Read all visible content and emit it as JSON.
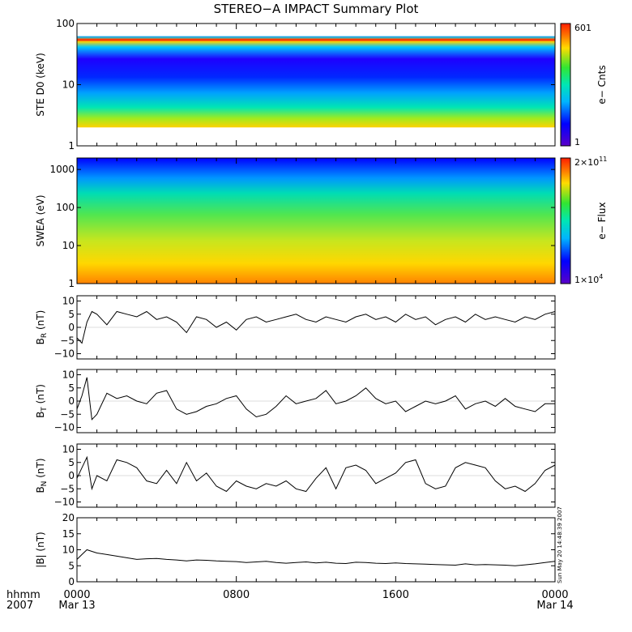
{
  "title": "STEREO−A IMPACT Summary Plot",
  "timestamp": "Sun May 20 14:48:39 2007",
  "time_axis": {
    "row1_label": "hhmm",
    "row2_label": "2007",
    "ticks": [
      {
        "hours": 0,
        "label": "0000",
        "sublabel": "Mar 13"
      },
      {
        "hours": 8,
        "label": "0800",
        "sublabel": ""
      },
      {
        "hours": 16,
        "label": "1600",
        "sublabel": ""
      },
      {
        "hours": 24,
        "label": "0000",
        "sublabel": "Mar 14"
      }
    ],
    "range_hours": [
      0,
      24
    ]
  },
  "chart_data": [
    {
      "type": "heatmap",
      "id": "ste",
      "ylabel": "STE D0 (keV)",
      "y_scale": "log",
      "ylim": [
        1,
        100
      ],
      "yticks": [
        {
          "v": 1,
          "label": "1"
        },
        {
          "v": 10,
          "label": "10"
        },
        {
          "v": 100,
          "label": "100"
        }
      ],
      "colorbar": {
        "label": "e− Cnts",
        "max_label": "601",
        "min_label": "1",
        "min": 1,
        "max": 601
      },
      "description_values": {
        "band_energy_range_keV": [
          2,
          60
        ],
        "bright_line_keV": 55
      }
    },
    {
      "type": "heatmap",
      "id": "swea",
      "ylabel": "SWEA (eV)",
      "y_scale": "log",
      "ylim": [
        1,
        2000
      ],
      "yticks": [
        {
          "v": 1,
          "label": "1"
        },
        {
          "v": 10,
          "label": "10"
        },
        {
          "v": 100,
          "label": "100"
        },
        {
          "v": 1000,
          "label": "1000"
        }
      ],
      "colorbar": {
        "label": "e− Flux",
        "max_label": "2×10",
        "max_exp": "11",
        "min_label": "1×10",
        "min_exp": "4",
        "min": 10000,
        "max": 200000000000
      }
    },
    {
      "type": "line",
      "id": "br",
      "ylabel": "B",
      "ylabel_sub": "R",
      "ylabel_unit": " (nT)",
      "ylim": [
        -12,
        12
      ],
      "yticks": [
        {
          "v": -10,
          "label": "−10"
        },
        {
          "v": -5,
          "label": "−5"
        },
        {
          "v": 0,
          "label": "0"
        },
        {
          "v": 5,
          "label": "5"
        },
        {
          "v": 10,
          "label": "10"
        }
      ],
      "x": [
        0,
        0.25,
        0.5,
        0.75,
        1,
        1.5,
        2,
        2.5,
        3,
        3.5,
        4,
        4.5,
        5,
        5.5,
        6,
        6.5,
        7,
        7.5,
        8,
        8.5,
        9,
        9.5,
        10,
        10.5,
        11,
        11.5,
        12,
        12.5,
        13,
        13.5,
        14,
        14.5,
        15,
        15.5,
        16,
        16.5,
        17,
        17.5,
        18,
        18.5,
        19,
        19.5,
        20,
        20.5,
        21,
        21.5,
        22,
        22.5,
        23,
        23.5,
        24
      ],
      "y": [
        -4,
        -6,
        2,
        6,
        5,
        1,
        6,
        5,
        4,
        6,
        3,
        4,
        2,
        -2,
        4,
        3,
        0,
        2,
        -1,
        3,
        4,
        2,
        3,
        4,
        5,
        3,
        2,
        4,
        3,
        2,
        4,
        5,
        3,
        4,
        2,
        5,
        3,
        4,
        1,
        3,
        4,
        2,
        5,
        3,
        4,
        3,
        2,
        4,
        3,
        5,
        6
      ]
    },
    {
      "type": "line",
      "id": "bt",
      "ylabel": "B",
      "ylabel_sub": "T",
      "ylabel_unit": " (nT)",
      "ylim": [
        -12,
        12
      ],
      "yticks": [
        {
          "v": -10,
          "label": "−10"
        },
        {
          "v": -5,
          "label": "−5"
        },
        {
          "v": 0,
          "label": "0"
        },
        {
          "v": 5,
          "label": "5"
        },
        {
          "v": 10,
          "label": "10"
        }
      ],
      "x": [
        0,
        0.25,
        0.5,
        0.75,
        1,
        1.5,
        2,
        2.5,
        3,
        3.5,
        4,
        4.5,
        5,
        5.5,
        6,
        6.5,
        7,
        7.5,
        8,
        8.5,
        9,
        9.5,
        10,
        10.5,
        11,
        11.5,
        12,
        12.5,
        13,
        13.5,
        14,
        14.5,
        15,
        15.5,
        16,
        16.5,
        17,
        17.5,
        18,
        18.5,
        19,
        19.5,
        20,
        20.5,
        21,
        21.5,
        22,
        22.5,
        23,
        23.5,
        24
      ],
      "y": [
        -3,
        2,
        9,
        -7,
        -5,
        3,
        1,
        2,
        0,
        -1,
        3,
        4,
        -3,
        -5,
        -4,
        -2,
        -1,
        1,
        2,
        -3,
        -6,
        -5,
        -2,
        2,
        -1,
        0,
        1,
        4,
        -1,
        0,
        2,
        5,
        1,
        -1,
        0,
        -4,
        -2,
        0,
        -1,
        0,
        2,
        -3,
        -1,
        0,
        -2,
        1,
        -2,
        -3,
        -4,
        -1,
        -1
      ]
    },
    {
      "type": "line",
      "id": "bn",
      "ylabel": "B",
      "ylabel_sub": "N",
      "ylabel_unit": " (nT)",
      "ylim": [
        -12,
        12
      ],
      "yticks": [
        {
          "v": -10,
          "label": "−10"
        },
        {
          "v": -5,
          "label": "−5"
        },
        {
          "v": 0,
          "label": "0"
        },
        {
          "v": 5,
          "label": "5"
        },
        {
          "v": 10,
          "label": "10"
        }
      ],
      "x": [
        0,
        0.25,
        0.5,
        0.75,
        1,
        1.5,
        2,
        2.5,
        3,
        3.5,
        4,
        4.5,
        5,
        5.5,
        6,
        6.5,
        7,
        7.5,
        8,
        8.5,
        9,
        9.5,
        10,
        10.5,
        11,
        11.5,
        12,
        12.5,
        13,
        13.5,
        14,
        14.5,
        15,
        15.5,
        16,
        16.5,
        17,
        17.5,
        18,
        18.5,
        19,
        19.5,
        20,
        20.5,
        21,
        21.5,
        22,
        22.5,
        23,
        23.5,
        24
      ],
      "y": [
        -1,
        3,
        7,
        -5,
        0,
        -2,
        6,
        5,
        3,
        -2,
        -3,
        2,
        -3,
        5,
        -2,
        1,
        -4,
        -6,
        -2,
        -4,
        -5,
        -3,
        -4,
        -2,
        -5,
        -6,
        -1,
        3,
        -5,
        3,
        4,
        2,
        -3,
        -1,
        1,
        5,
        6,
        -3,
        -5,
        -4,
        3,
        5,
        4,
        3,
        -2,
        -5,
        -4,
        -6,
        -3,
        2,
        4
      ]
    },
    {
      "type": "line",
      "id": "bmag",
      "ylabel": "|B| (nT)",
      "ylim": [
        0,
        20
      ],
      "yticks": [
        {
          "v": 0,
          "label": "0"
        },
        {
          "v": 5,
          "label": "5"
        },
        {
          "v": 10,
          "label": "10"
        },
        {
          "v": 15,
          "label": "15"
        },
        {
          "v": 20,
          "label": "20"
        }
      ],
      "x": [
        0,
        0.25,
        0.5,
        0.75,
        1,
        1.5,
        2,
        2.5,
        3,
        3.5,
        4,
        4.5,
        5,
        5.5,
        6,
        6.5,
        7,
        7.5,
        8,
        8.5,
        9,
        9.5,
        10,
        10.5,
        11,
        11.5,
        12,
        12.5,
        13,
        13.5,
        14,
        14.5,
        15,
        15.5,
        16,
        16.5,
        17,
        17.5,
        18,
        18.5,
        19,
        19.5,
        20,
        20.5,
        21,
        21.5,
        22,
        22.5,
        23,
        23.5,
        24
      ],
      "y": [
        7,
        8.5,
        10,
        9.5,
        9,
        8.5,
        8,
        7.5,
        7,
        7.2,
        7.3,
        7,
        6.8,
        6.5,
        6.8,
        6.7,
        6.5,
        6.4,
        6.3,
        6,
        6.2,
        6.4,
        6,
        5.8,
        6,
        6.2,
        5.9,
        6.1,
        5.8,
        5.7,
        6.1,
        6,
        5.8,
        5.7,
        5.9,
        5.7,
        5.6,
        5.5,
        5.4,
        5.3,
        5.2,
        5.6,
        5.3,
        5.4,
        5.3,
        5.2,
        5,
        5.3,
        5.6,
        6,
        6.4
      ]
    }
  ]
}
